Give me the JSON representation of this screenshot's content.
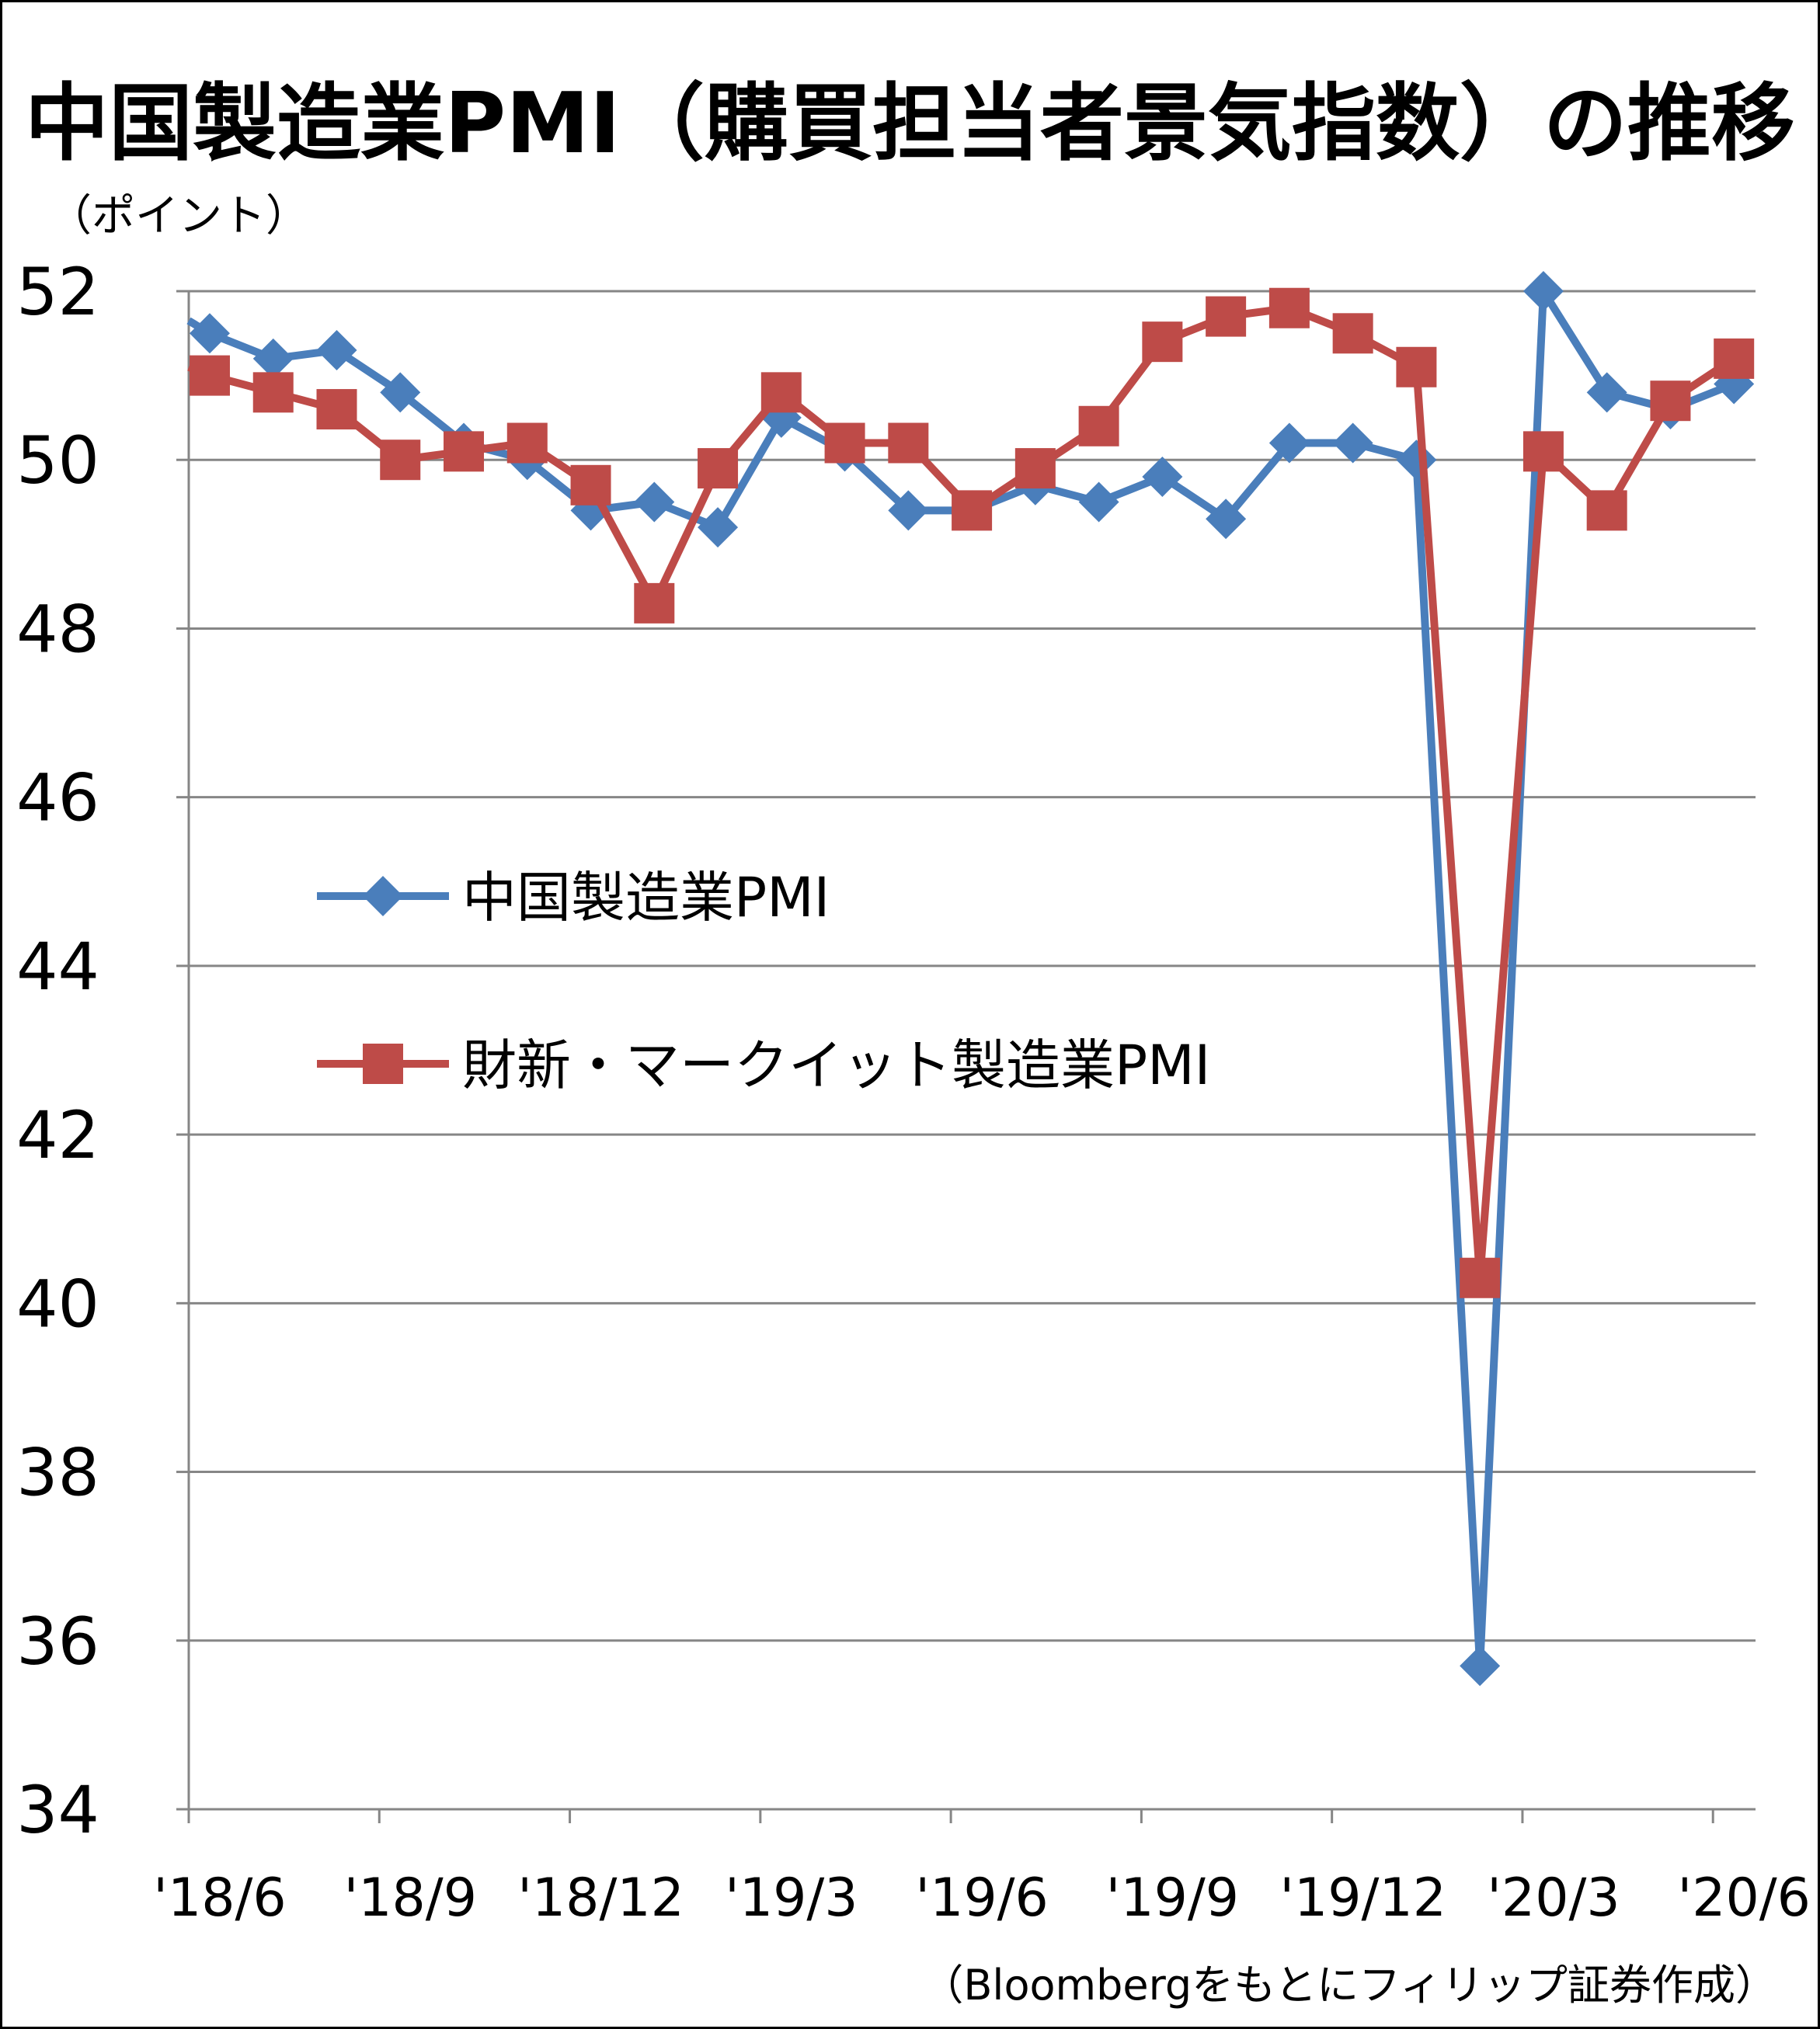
{
  "title": "中国製造業PMI（購買担当者景気指数）の推移",
  "source_note": "（Bloombergをもとにフィリップ証券作成）",
  "chart_data": {
    "type": "line",
    "title": "中国製造業PMI（購買担当者景気指数）の推移",
    "ylabel": "（ポイント）",
    "xlabel": "",
    "ylim": [
      34,
      52
    ],
    "yticks": [
      34,
      36,
      38,
      40,
      42,
      44,
      46,
      48,
      50,
      52
    ],
    "grid": true,
    "legend_position": "center-left",
    "x_ticks": [
      "'18/6",
      "'18/9",
      "'18/12",
      "'19/3",
      "'19/6",
      "'19/9",
      "'19/12",
      "'20/3",
      "'20/6"
    ],
    "categories": [
      "2018/6",
      "2018/7",
      "2018/8",
      "2018/9",
      "2018/10",
      "2018/11",
      "2018/12",
      "2019/1",
      "2019/2",
      "2019/3",
      "2019/4",
      "2019/5",
      "2019/6",
      "2019/7",
      "2019/8",
      "2019/9",
      "2019/10",
      "2019/11",
      "2019/12",
      "2020/1",
      "2020/2",
      "2020/3",
      "2020/4",
      "2020/5",
      "2020/6"
    ],
    "series": [
      {
        "name": "中国製造業PMI",
        "color": "#4A7EBB",
        "marker": "diamond",
        "values": [
          51.5,
          51.2,
          51.3,
          50.8,
          50.2,
          50.0,
          49.4,
          49.5,
          49.2,
          50.5,
          50.1,
          49.4,
          49.4,
          49.7,
          49.5,
          49.8,
          49.3,
          50.2,
          50.2,
          50.0,
          35.7,
          52.0,
          50.8,
          50.6,
          50.9
        ]
      },
      {
        "name": "財新・マークイット製造業PMI",
        "color": "#BE4B48",
        "marker": "square",
        "values": [
          51.0,
          50.8,
          50.6,
          50.0,
          50.1,
          50.2,
          49.7,
          48.3,
          49.9,
          50.8,
          50.2,
          50.2,
          49.4,
          49.9,
          50.4,
          51.4,
          51.7,
          51.8,
          51.5,
          51.1,
          40.3,
          50.1,
          49.4,
          50.7,
          51.2
        ]
      }
    ]
  }
}
